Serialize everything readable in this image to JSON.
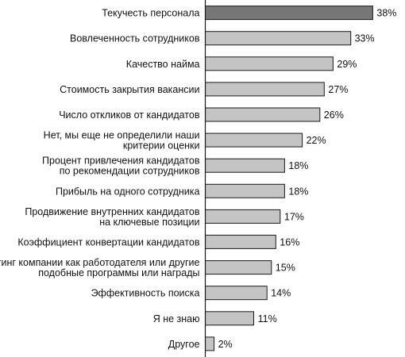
{
  "chart_data": {
    "type": "bar",
    "orientation": "horizontal",
    "categories": [
      [
        "Текучесть персонала"
      ],
      [
        "Вовлеченность сотрудников"
      ],
      [
        "Качество найма"
      ],
      [
        "Стоимость закрытия вакансии"
      ],
      [
        "Число откликов от кандидатов"
      ],
      [
        "Нет, мы еще не определили наши",
        "критерии оценки"
      ],
      [
        "Процент привлечения кандидатов",
        "по рекомендации сотрудников"
      ],
      [
        "Прибыль на одного сотрудника"
      ],
      [
        "Продвижение внутренних кандидатов",
        "на ключевые позиции"
      ],
      [
        "Коэффициент конвертации кандидатов"
      ],
      [
        "Рейтинг компании как работодателя или другие",
        "подобные программы или награды"
      ],
      [
        "Эффективность поиска"
      ],
      [
        "Я не знаю"
      ],
      [
        "Другое"
      ]
    ],
    "values": [
      38,
      33,
      29,
      27,
      26,
      22,
      18,
      18,
      17,
      16,
      15,
      14,
      11,
      2
    ],
    "value_labels": [
      "38%",
      "33%",
      "29%",
      "27%",
      "26%",
      "22%",
      "18%",
      "18%",
      "17%",
      "16%",
      "15%",
      "14%",
      "11%",
      "2%"
    ],
    "unit": "%",
    "title": "",
    "xlabel": "",
    "ylabel": "",
    "xlim": [
      0,
      38
    ],
    "grid": false,
    "legend": "none",
    "colors": {
      "highlight_bar": "#777777",
      "bar": "#c4c4c4",
      "bar_stroke": "#1a1a1a",
      "axis": "#1a1a1a"
    }
  }
}
